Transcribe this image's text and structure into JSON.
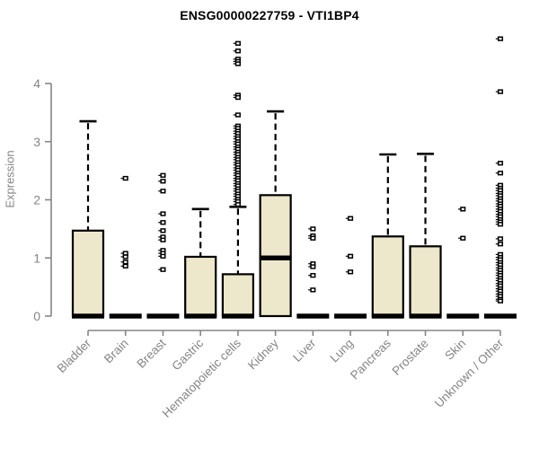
{
  "chart_data": {
    "type": "boxplot",
    "title": "ENSG00000227759 - VTI1BP4",
    "ylabel": "Expression",
    "xlabel": "",
    "ylim": [
      0,
      4.9
    ],
    "yticks": [
      0,
      1,
      2,
      3,
      4
    ],
    "grid": false,
    "legend": "none",
    "colors": {
      "box_fill": "#EDE7CB",
      "box_border": "#000000",
      "median": "#000000",
      "whisker": "#000000",
      "axis": "#858585",
      "tick_label": "#858585",
      "title": "#000000",
      "background": "#ffffff"
    },
    "categories": [
      "Bladder",
      "Brain",
      "Breast",
      "Gastric",
      "Hematopoietic cells",
      "Kidney",
      "Liver",
      "Lung",
      "Pancreas",
      "Prostate",
      "Skin",
      "Unknown / Other"
    ],
    "series": [
      {
        "category": "Bladder",
        "q1": 0,
        "median": 0,
        "q3": 1.47,
        "lo": 0,
        "hi": 3.35,
        "outliers": []
      },
      {
        "category": "Brain",
        "q1": 0,
        "median": 0,
        "q3": 0,
        "lo": 0,
        "hi": 0,
        "outliers": [
          2.37,
          1.08,
          1.02,
          0.93,
          0.86
        ]
      },
      {
        "category": "Breast",
        "q1": 0,
        "median": 0,
        "q3": 0,
        "lo": 0,
        "hi": 0,
        "outliers": [
          2.42,
          2.32,
          2.15,
          1.76,
          1.61,
          1.47,
          1.36,
          1.31,
          1.13,
          1.08,
          1.03,
          0.8
        ]
      },
      {
        "category": "Gastric",
        "q1": 0,
        "median": 0,
        "q3": 1.02,
        "lo": 0,
        "hi": 1.84,
        "outliers": []
      },
      {
        "category": "Hematopoietic cells",
        "q1": 0,
        "median": 0,
        "q3": 0.72,
        "lo": 0,
        "hi": 1.88,
        "outliers": [
          4.69,
          4.56,
          4.42,
          4.38,
          4.34,
          3.8,
          3.76,
          3.46,
          3.27,
          3.23,
          3.18,
          3.14,
          3.09,
          3.05,
          3.0,
          2.96,
          2.91,
          2.87,
          2.82,
          2.78,
          2.73,
          2.69,
          2.64,
          2.6,
          2.55,
          2.51,
          2.46,
          2.42,
          2.37,
          2.33,
          2.28,
          2.24,
          2.19,
          2.15,
          2.1,
          2.06,
          2.01,
          1.97,
          1.92
        ]
      },
      {
        "category": "Kidney",
        "q1": 0,
        "median": 1.0,
        "q3": 2.08,
        "lo": 0,
        "hi": 3.52,
        "outliers": []
      },
      {
        "category": "Liver",
        "q1": 0,
        "median": 0,
        "q3": 0,
        "lo": 0,
        "hi": 0,
        "outliers": [
          1.5,
          1.38,
          1.34,
          0.9,
          0.85,
          0.7,
          0.45
        ]
      },
      {
        "category": "Lung",
        "q1": 0,
        "median": 0,
        "q3": 0,
        "lo": 0,
        "hi": 0,
        "outliers": [
          1.68,
          1.03,
          0.76
        ]
      },
      {
        "category": "Pancreas",
        "q1": 0,
        "median": 0,
        "q3": 1.37,
        "lo": 0,
        "hi": 2.78,
        "outliers": []
      },
      {
        "category": "Prostate",
        "q1": 0,
        "median": 0,
        "q3": 1.2,
        "lo": 0,
        "hi": 2.79,
        "outliers": []
      },
      {
        "category": "Skin",
        "q1": 0,
        "median": 0,
        "q3": 0,
        "lo": 0,
        "hi": 0,
        "outliers": [
          1.84,
          1.34
        ]
      },
      {
        "category": "Unknown / Other",
        "q1": 0,
        "median": 0,
        "q3": 0,
        "lo": 0,
        "hi": 0,
        "outliers": [
          4.77,
          3.86,
          2.63,
          2.46,
          2.25,
          2.2,
          2.16,
          2.11,
          2.07,
          2.02,
          1.98,
          1.93,
          1.89,
          1.84,
          1.8,
          1.75,
          1.71,
          1.66,
          1.62,
          1.58,
          1.33,
          1.24,
          1.06,
          1.01,
          0.97,
          0.92,
          0.88,
          0.83,
          0.79,
          0.74,
          0.7,
          0.65,
          0.61,
          0.56,
          0.52,
          0.47,
          0.43,
          0.38,
          0.34,
          0.29,
          0.26
        ]
      }
    ]
  }
}
